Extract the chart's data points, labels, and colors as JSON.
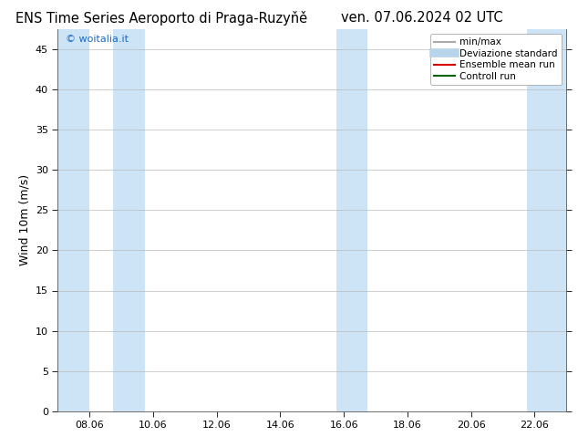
{
  "title_left": "ENS Time Series Aeroporto di Praga-Ruzyňě",
  "title_right": "ven. 07.06.2024 02 UTC",
  "ylabel": "Wind 10m (m/s)",
  "watermark": "© woitalia.it",
  "watermark_color": "#1a6abf",
  "ylim": [
    0,
    47.5
  ],
  "yticks": [
    0,
    5,
    10,
    15,
    20,
    25,
    30,
    35,
    40,
    45
  ],
  "xtick_labels": [
    "08.06",
    "10.06",
    "12.06",
    "14.06",
    "16.06",
    "18.06",
    "20.06",
    "22.06"
  ],
  "xtick_positions": [
    1,
    3,
    5,
    7,
    9,
    11,
    13,
    15
  ],
  "xmin": 0,
  "xmax": 16,
  "night_bands": [
    [
      0.0,
      1.0
    ],
    [
      1.75,
      2.75
    ],
    [
      8.75,
      9.75
    ],
    [
      14.75,
      16.0
    ]
  ],
  "night_band_color": "#cce4f5",
  "background_color": "#ffffff",
  "grid_color": "#bbbbbb",
  "legend_entries": [
    {
      "label": "min/max",
      "color": "#aaaaaa",
      "lw": 1.5,
      "linestyle": "-"
    },
    {
      "label": "Deviazione standard",
      "color": "#b8d4ea",
      "lw": 7,
      "linestyle": "-"
    },
    {
      "label": "Ensemble mean run",
      "color": "#dd0000",
      "lw": 1.5,
      "linestyle": "-"
    },
    {
      "label": "Controll run",
      "color": "#006600",
      "lw": 1.5,
      "linestyle": "-"
    }
  ],
  "title_fontsize": 10.5,
  "axis_fontsize": 9,
  "tick_fontsize": 8,
  "legend_fontsize": 7.5
}
